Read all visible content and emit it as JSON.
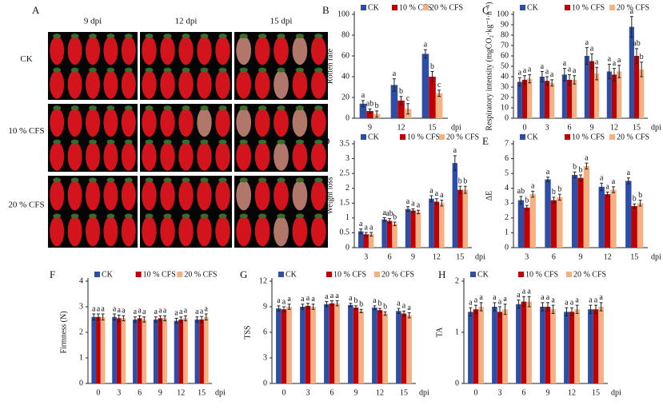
{
  "photo_panel": {
    "label": "A",
    "columns": [
      "9 dpi",
      "12 dpi",
      "15 dpi"
    ],
    "rows": [
      "CK",
      "10 % CFS",
      "20 % CFS"
    ]
  },
  "chart_data": [
    {
      "type": "bar",
      "label": "B",
      "ylabel": "Rotten rate",
      "xlabel": "dpi",
      "categories": [
        "9",
        "12",
        "15"
      ],
      "ylim": [
        0,
        100
      ],
      "yticks": [
        0,
        20,
        40,
        60,
        80,
        100
      ],
      "series": [
        {
          "name": "CK",
          "color": "#2e4da6",
          "values": [
            14,
            32,
            62
          ],
          "errors": [
            3,
            6,
            4
          ],
          "letters": [
            "a",
            "a",
            "a"
          ]
        },
        {
          "name": "10 % CFS",
          "color": "#c00000",
          "values": [
            7,
            17,
            40
          ],
          "errors": [
            2,
            4,
            5
          ],
          "letters": [
            "ab",
            "b",
            "b"
          ]
        },
        {
          "name": "20 % CFS",
          "color": "#f4b183",
          "values": [
            4,
            9,
            24
          ],
          "errors": [
            3,
            5,
            3
          ],
          "letters": [
            "b",
            "c",
            "c"
          ]
        }
      ]
    },
    {
      "type": "bar",
      "label": "C",
      "ylabel": "Respiratory intensity (mgCO₂·kg⁻¹·h⁻¹)",
      "xlabel": "dpi",
      "categories": [
        "0",
        "3",
        "6",
        "9",
        "12",
        "15"
      ],
      "ylim": [
        0,
        100
      ],
      "yticks": [
        0,
        10,
        20,
        30,
        40,
        50,
        60,
        70,
        80,
        90,
        100
      ],
      "series": [
        {
          "name": "CK",
          "color": "#2e4da6",
          "values": [
            35,
            40,
            42,
            60,
            45,
            88
          ],
          "errors": [
            4,
            5,
            6,
            8,
            7,
            10
          ],
          "letters": [
            "a",
            "a",
            "a",
            "a",
            "a",
            "a"
          ]
        },
        {
          "name": "10 % CFS",
          "color": "#c00000",
          "values": [
            37,
            36,
            37,
            55,
            42,
            60
          ],
          "errors": [
            4,
            4,
            5,
            7,
            6,
            7
          ],
          "letters": [
            "a",
            "a",
            "a",
            "a",
            "a",
            "ab"
          ]
        },
        {
          "name": "20 % CFS",
          "color": "#f4b183",
          "values": [
            38,
            34,
            37,
            43,
            45,
            47
          ],
          "errors": [
            4,
            3,
            4,
            6,
            6,
            7
          ],
          "letters": [
            "a",
            "a",
            "a",
            "a",
            "a",
            "b"
          ]
        }
      ]
    },
    {
      "type": "bar",
      "label": "D",
      "ylabel": "Weight loss",
      "xlabel": "dpi",
      "categories": [
        "3",
        "6",
        "9",
        "12",
        "15"
      ],
      "ylim": [
        0,
        3.5
      ],
      "yticks": [
        0,
        0.5,
        1,
        1.5,
        2,
        2.5,
        3,
        3.5
      ],
      "series": [
        {
          "name": "CK",
          "color": "#2e4da6",
          "values": [
            0.55,
            0.95,
            1.3,
            1.65,
            2.85
          ],
          "errors": [
            0.08,
            0.06,
            0.08,
            0.1,
            0.25
          ],
          "letters": [
            "a",
            "a",
            "a",
            "a",
            "a"
          ]
        },
        {
          "name": "10 % CFS",
          "color": "#c00000",
          "values": [
            0.45,
            0.9,
            1.25,
            1.55,
            1.95
          ],
          "errors": [
            0.06,
            0.08,
            0.06,
            0.1,
            0.12
          ],
          "letters": [
            "a",
            "ab",
            "a",
            "a",
            "b"
          ]
        },
        {
          "name": "20 % CFS",
          "color": "#f4b183",
          "values": [
            0.45,
            0.8,
            1.2,
            1.5,
            1.95
          ],
          "errors": [
            0.06,
            0.06,
            0.06,
            0.1,
            0.12
          ],
          "letters": [
            "a",
            "b",
            "a",
            "a",
            "b"
          ]
        }
      ]
    },
    {
      "type": "bar",
      "label": "E",
      "ylabel": "ΔE",
      "xlabel": "dpi",
      "categories": [
        "3",
        "6",
        "9",
        "12",
        "15"
      ],
      "ylim": [
        0,
        7
      ],
      "yticks": [
        0,
        1,
        2,
        3,
        4,
        5,
        6,
        7
      ],
      "series": [
        {
          "name": "CK",
          "color": "#2e4da6",
          "values": [
            3.2,
            4.6,
            4.9,
            4.1,
            4.5
          ],
          "errors": [
            0.25,
            0.15,
            0.2,
            0.25,
            0.2
          ],
          "letters": [
            "ab",
            "a",
            "b",
            "a",
            "a"
          ]
        },
        {
          "name": "10 % CFS",
          "color": "#c00000",
          "values": [
            2.7,
            3.2,
            4.7,
            3.6,
            2.8
          ],
          "errors": [
            0.15,
            0.2,
            0.2,
            0.15,
            0.15
          ],
          "letters": [
            "b",
            "b",
            "b",
            "a",
            "b"
          ]
        },
        {
          "name": "20 % CFS",
          "color": "#f4b183",
          "values": [
            3.6,
            3.4,
            5.5,
            3.9,
            3.0
          ],
          "errors": [
            0.2,
            0.2,
            0.2,
            0.2,
            0.2
          ],
          "letters": [
            "a",
            "b",
            "a",
            "a",
            "b"
          ]
        }
      ]
    },
    {
      "type": "bar",
      "label": "F",
      "ylabel": "Firmness (N)",
      "xlabel": "dpi",
      "categories": [
        "0",
        "3",
        "6",
        "9",
        "12",
        "15"
      ],
      "ylim": [
        0,
        4
      ],
      "yticks": [
        0,
        1,
        2,
        3,
        4
      ],
      "series": [
        {
          "name": "CK",
          "color": "#2e4da6",
          "values": [
            2.6,
            2.6,
            2.5,
            2.5,
            2.45,
            2.5
          ],
          "errors": [
            0.12,
            0.12,
            0.1,
            0.1,
            0.1,
            0.1
          ],
          "letters": [
            "a",
            "a",
            "a",
            "a",
            "a",
            "a"
          ]
        },
        {
          "name": "10 % CFS",
          "color": "#c00000",
          "values": [
            2.6,
            2.55,
            2.55,
            2.55,
            2.5,
            2.5
          ],
          "errors": [
            0.12,
            0.12,
            0.1,
            0.1,
            0.1,
            0.12
          ],
          "letters": [
            "a",
            "a",
            "a",
            "a",
            "a",
            "a"
          ]
        },
        {
          "name": "20 % CFS",
          "color": "#f4b183",
          "values": [
            2.6,
            2.55,
            2.5,
            2.55,
            2.55,
            2.6
          ],
          "errors": [
            0.12,
            0.1,
            0.1,
            0.1,
            0.1,
            0.12
          ],
          "letters": [
            "a",
            "a",
            "a",
            "a",
            "a",
            "a"
          ]
        }
      ]
    },
    {
      "type": "bar",
      "label": "G",
      "ylabel": "TSS",
      "xlabel": "dpi",
      "categories": [
        "0",
        "3",
        "6",
        "9",
        "12",
        "15"
      ],
      "ylim": [
        0,
        12
      ],
      "yticks": [
        0,
        3,
        6,
        9,
        12
      ],
      "series": [
        {
          "name": "CK",
          "color": "#2e4da6",
          "values": [
            8.8,
            9.0,
            9.3,
            9.2,
            8.9,
            8.5
          ],
          "errors": [
            0.3,
            0.3,
            0.3,
            0.2,
            0.2,
            0.3
          ],
          "letters": [
            "a",
            "a",
            "a",
            "a",
            "a",
            "a"
          ]
        },
        {
          "name": "10 % CFS",
          "color": "#c00000",
          "values": [
            8.7,
            9.1,
            9.4,
            8.9,
            8.6,
            8.2
          ],
          "errors": [
            0.3,
            0.3,
            0.3,
            0.2,
            0.2,
            0.3
          ],
          "letters": [
            "a",
            "a",
            "a",
            "b",
            "b",
            "a"
          ]
        },
        {
          "name": "20 % CFS",
          "color": "#f4b183",
          "values": [
            9.0,
            9.0,
            9.4,
            8.5,
            8.2,
            8.0
          ],
          "errors": [
            0.3,
            0.3,
            0.3,
            0.2,
            0.2,
            0.3
          ],
          "letters": [
            "a",
            "a",
            "a",
            "b",
            "b",
            "a"
          ]
        }
      ]
    },
    {
      "type": "bar",
      "label": "H",
      "ylabel": "TA",
      "xlabel": "dpi",
      "categories": [
        "0",
        "3",
        "6",
        "9",
        "12",
        "15"
      ],
      "ylim": [
        0,
        2
      ],
      "yticks": [
        0,
        1,
        2
      ],
      "series": [
        {
          "name": "CK",
          "color": "#2e4da6",
          "values": [
            1.4,
            1.5,
            1.55,
            1.5,
            1.4,
            1.45
          ],
          "errors": [
            0.08,
            0.08,
            0.08,
            0.08,
            0.08,
            0.08
          ],
          "letters": [
            "a",
            "a",
            "a",
            "a",
            "a",
            "a"
          ]
        },
        {
          "name": "10 % CFS",
          "color": "#c00000",
          "values": [
            1.45,
            1.4,
            1.6,
            1.5,
            1.4,
            1.45
          ],
          "errors": [
            0.08,
            0.1,
            0.1,
            0.08,
            0.08,
            0.08
          ],
          "letters": [
            "a",
            "a",
            "a",
            "a",
            "a",
            "a"
          ]
        },
        {
          "name": "20 % CFS",
          "color": "#f4b183",
          "values": [
            1.5,
            1.45,
            1.6,
            1.45,
            1.45,
            1.5
          ],
          "errors": [
            0.08,
            0.1,
            0.1,
            0.08,
            0.08,
            0.08
          ],
          "letters": [
            "a",
            "a",
            "a",
            "a",
            "a",
            "a"
          ]
        }
      ]
    }
  ]
}
